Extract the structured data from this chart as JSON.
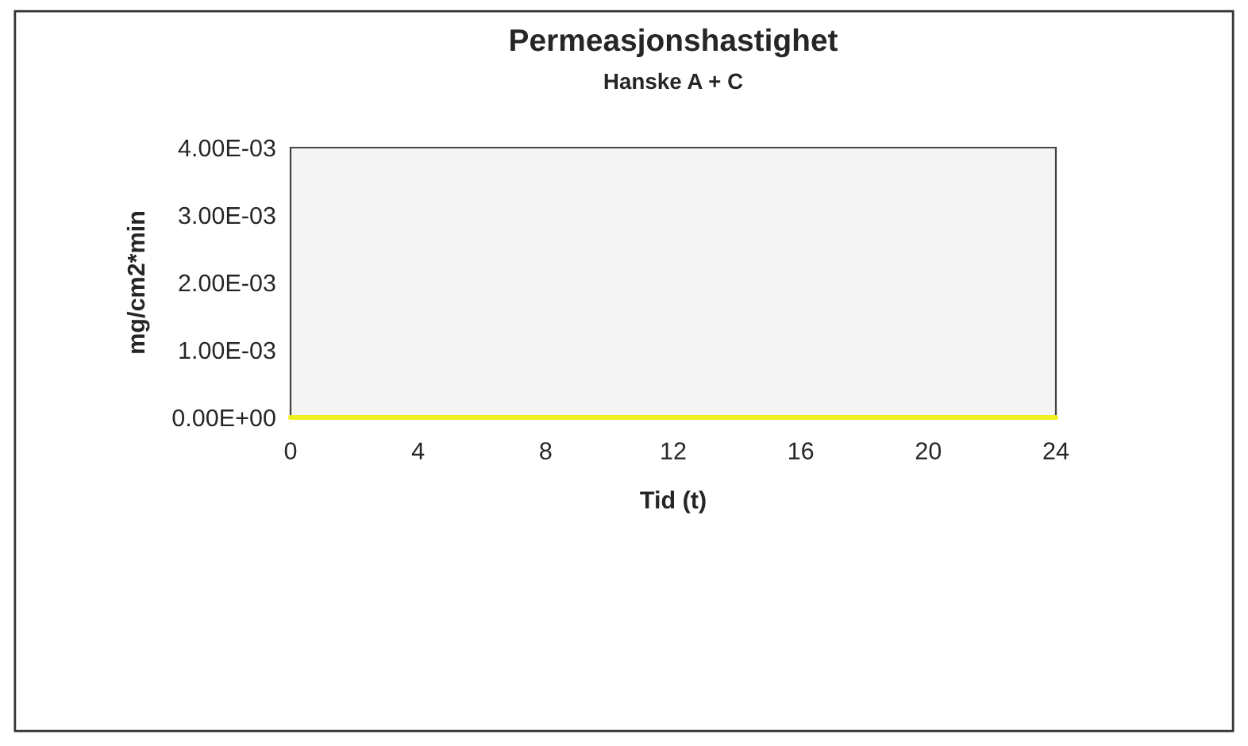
{
  "chart_data": {
    "type": "line",
    "title": "Permeasjonshastighet",
    "subtitle": "Hanske A + C",
    "xlabel": "Tid (t)",
    "ylabel": "mg/cm2*min",
    "series": [
      {
        "color": "#f0f020",
        "x": [
          0,
          24
        ],
        "values": [
          0,
          0
        ]
      }
    ],
    "xlim": [
      0,
      24
    ],
    "xticks": [
      0,
      4,
      8,
      12,
      16,
      20,
      24
    ],
    "ylim": [
      0,
      0.004
    ],
    "yticks": [
      {
        "value": 0,
        "label": "0.00E+00"
      },
      {
        "value": 0.001,
        "label": "1.00E-03"
      },
      {
        "value": 0.002,
        "label": "2.00E-03"
      },
      {
        "value": 0.003,
        "label": "3.00E-03"
      },
      {
        "value": 0.004,
        "label": "4.00E-03"
      }
    ],
    "grid": false,
    "legend": false,
    "marker": "none",
    "line_style": "solid"
  }
}
